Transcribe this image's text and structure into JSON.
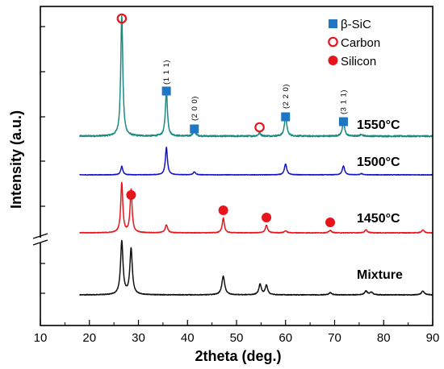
{
  "chart_data": {
    "type": "line",
    "xlabel": "2theta (deg.)",
    "ylabel": "Intensity (a.u.)",
    "xlim": [
      10,
      90
    ],
    "x_ticks": [
      10,
      20,
      30,
      40,
      50,
      60,
      70,
      80,
      90
    ],
    "y_axis_break": true,
    "legend": {
      "position": "top-right",
      "entries": [
        {
          "name": "β-SiC",
          "marker": "filled-square",
          "color": "#1f77c4"
        },
        {
          "name": "Carbon",
          "marker": "open-circle",
          "color": "#e8141b"
        },
        {
          "name": "Silicon",
          "marker": "filled-circle",
          "color": "#e8141b"
        }
      ]
    },
    "series": [
      {
        "name": "1550°C",
        "color": "#1a8a82",
        "baseline": 0.02,
        "peaks": [
          {
            "x": 26.6,
            "height": 1.0,
            "width": 0.25
          },
          {
            "x": 35.7,
            "height": 0.38,
            "width": 0.25
          },
          {
            "x": 41.4,
            "height": 0.045,
            "width": 0.3
          },
          {
            "x": 54.7,
            "height": 0.025,
            "width": 0.3
          },
          {
            "x": 60.0,
            "height": 0.17,
            "width": 0.28
          },
          {
            "x": 71.8,
            "height": 0.12,
            "width": 0.28
          },
          {
            "x": 75.5,
            "height": 0.015,
            "width": 0.3
          }
        ]
      },
      {
        "name": "1500°C",
        "color": "#1414c8",
        "baseline": 0.0,
        "peaks": [
          {
            "x": 26.6,
            "height": 0.21,
            "width": 0.25
          },
          {
            "x": 35.7,
            "height": 0.68,
            "width": 0.25
          },
          {
            "x": 41.4,
            "height": 0.07,
            "width": 0.3
          },
          {
            "x": 60.0,
            "height": 0.27,
            "width": 0.28
          },
          {
            "x": 71.8,
            "height": 0.22,
            "width": 0.28
          },
          {
            "x": 75.5,
            "height": 0.03,
            "width": 0.3
          }
        ]
      },
      {
        "name": "1450°C",
        "color": "#e8141b",
        "baseline": 0.0,
        "peaks": [
          {
            "x": 26.6,
            "height": 1.0,
            "width": 0.25
          },
          {
            "x": 28.5,
            "height": 0.86,
            "width": 0.25
          },
          {
            "x": 35.7,
            "height": 0.16,
            "width": 0.3
          },
          {
            "x": 47.3,
            "height": 0.3,
            "width": 0.25
          },
          {
            "x": 56.1,
            "height": 0.15,
            "width": 0.28
          },
          {
            "x": 60.0,
            "height": 0.04,
            "width": 0.3
          },
          {
            "x": 69.1,
            "height": 0.05,
            "width": 0.3
          },
          {
            "x": 76.4,
            "height": 0.06,
            "width": 0.3
          },
          {
            "x": 88.0,
            "height": 0.06,
            "width": 0.3
          }
        ]
      },
      {
        "name": "Mixture",
        "color": "#111111",
        "baseline": 0.0,
        "peaks": [
          {
            "x": 26.6,
            "height": 1.0,
            "width": 0.3
          },
          {
            "x": 28.5,
            "height": 0.86,
            "width": 0.3
          },
          {
            "x": 47.3,
            "height": 0.35,
            "width": 0.35
          },
          {
            "x": 54.8,
            "height": 0.2,
            "width": 0.3
          },
          {
            "x": 56.1,
            "height": 0.18,
            "width": 0.3
          },
          {
            "x": 69.1,
            "height": 0.04,
            "width": 0.35
          },
          {
            "x": 76.4,
            "height": 0.07,
            "width": 0.35
          },
          {
            "x": 77.5,
            "height": 0.05,
            "width": 0.35
          },
          {
            "x": 88.0,
            "height": 0.07,
            "width": 0.35
          }
        ]
      }
    ],
    "annotations": [
      {
        "type": "carbon",
        "x": 26.6,
        "series": "1550°C"
      },
      {
        "type": "sic",
        "x": 35.7,
        "series": "1550°C",
        "hkl": "(1 1 1)"
      },
      {
        "type": "sic",
        "x": 41.4,
        "series": "1550°C",
        "hkl": "(2 0 0)"
      },
      {
        "type": "carbon",
        "x": 54.7,
        "series": "1550°C"
      },
      {
        "type": "sic",
        "x": 60.0,
        "series": "1550°C",
        "hkl": "(2 2 0)"
      },
      {
        "type": "sic",
        "x": 71.8,
        "series": "1550°C",
        "hkl": "(3 1 1)"
      },
      {
        "type": "silicon",
        "x": 28.5,
        "series": "1450°C"
      },
      {
        "type": "silicon",
        "x": 47.3,
        "series": "1450°C"
      },
      {
        "type": "silicon",
        "x": 56.1,
        "series": "1450°C"
      },
      {
        "type": "silicon",
        "x": 69.1,
        "series": "1450°C"
      }
    ]
  },
  "labels": {
    "series_1550": "1550",
    "series_1500": "1500",
    "series_1450": "1450",
    "series_mixture": "Mixture",
    "degree_unit": "°C"
  }
}
